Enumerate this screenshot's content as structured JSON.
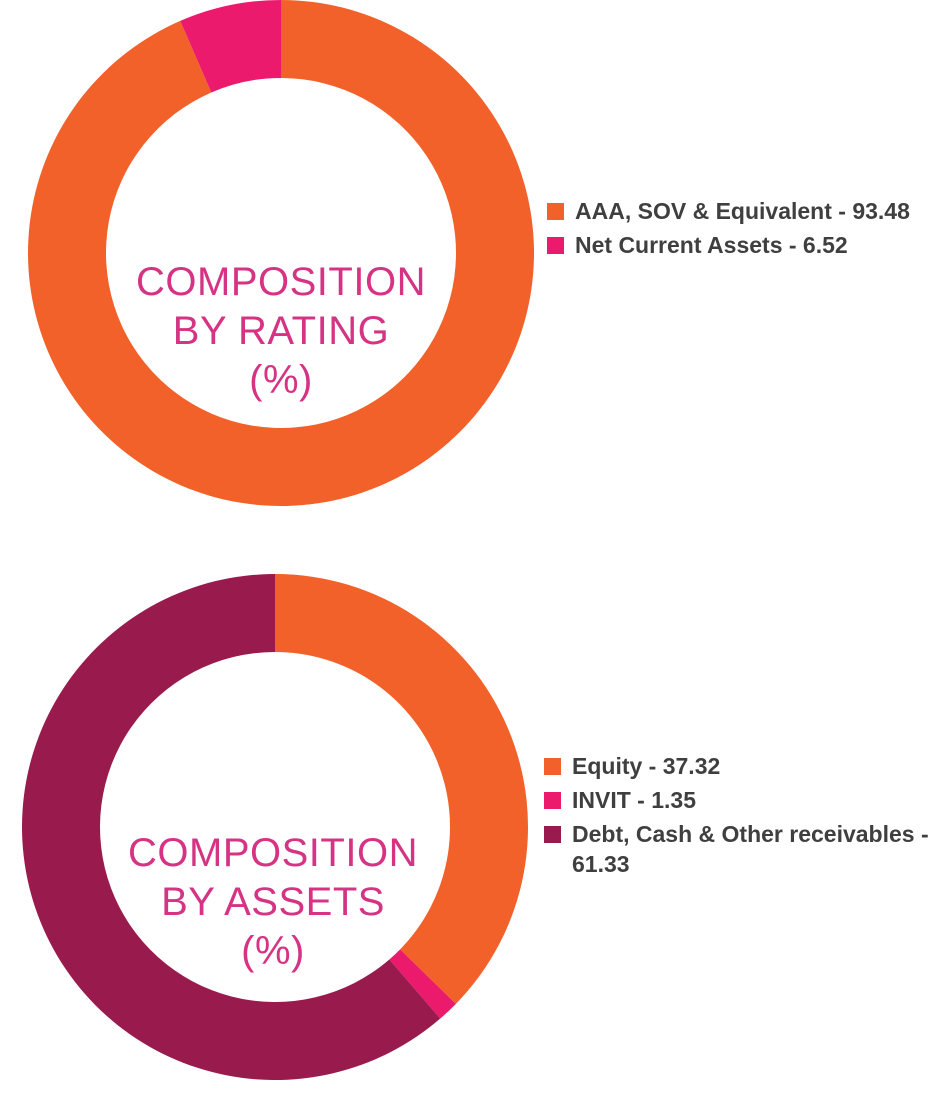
{
  "chart_data": [
    {
      "type": "pie",
      "donut": true,
      "title_lines": [
        "COMPOSITION",
        "BY RATING",
        "(%)"
      ],
      "slices": [
        {
          "label": "AAA, SOV & Equivalent",
          "value": 93.48,
          "color": "#f2612a",
          "legend_text": "AAA, SOV & Equivalent - 93.48"
        },
        {
          "label": "Net Current Assets",
          "value": 6.52,
          "color": "#ec1a6c",
          "legend_text": "Net Current Assets - 6.52"
        }
      ],
      "legend_placement": "right"
    },
    {
      "type": "pie",
      "donut": true,
      "title_lines": [
        "COMPOSITION",
        "BY ASSETS",
        "(%)"
      ],
      "slices": [
        {
          "label": "Equity",
          "value": 37.32,
          "color": "#f2612a",
          "legend_text": "Equity - 37.32"
        },
        {
          "label": "INVIT",
          "value": 1.35,
          "color": "#ec1a6c",
          "legend_text": "INVIT - 1.35"
        },
        {
          "label": "Debt, Cash & Other receivables",
          "value": 61.33,
          "color": "#991b4d",
          "legend_text": "Debt, Cash & Other receivables - 61.33"
        }
      ],
      "legend_placement": "right"
    }
  ]
}
